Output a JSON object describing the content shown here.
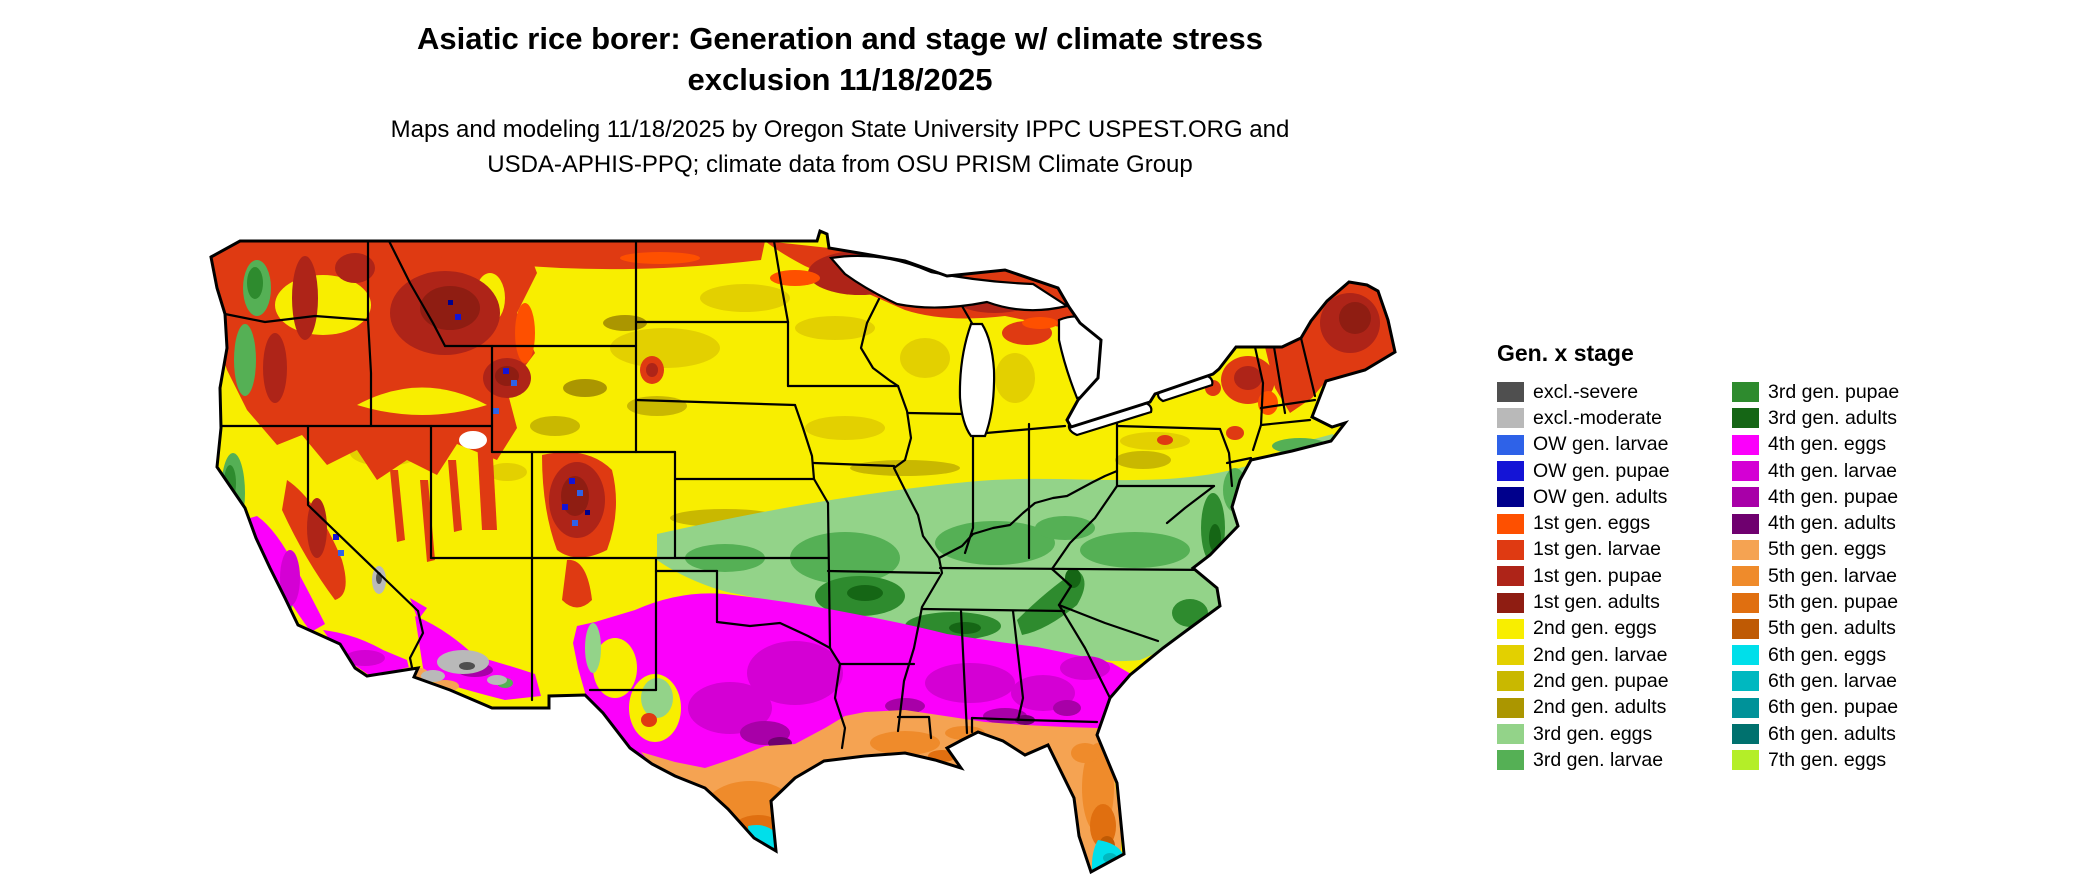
{
  "title": {
    "line1": "Asiatic rice borer: Generation and stage w/ climate stress",
    "line2": "exclusion 11/18/2025"
  },
  "subtitle": {
    "line1": "Maps and modeling 11/18/2025 by Oregon State University IPPC USPEST.ORG and",
    "line2": "USDA-APHIS-PPQ; climate data from OSU PRISM Climate Group"
  },
  "map": {
    "outline_color": "#000000",
    "water_color": "#ffffff",
    "background": "#ffffff"
  },
  "colors": {
    "excl_severe": "#4f4f4f",
    "excl_moderate": "#b9b9b9",
    "ow_larvae": "#2e62e8",
    "ow_pupae": "#1414d6",
    "ow_adults": "#00008c",
    "gen1_eggs": "#fe5000",
    "gen1_larvae": "#df3a12",
    "gen1_pupae": "#ae2418",
    "gen1_adults": "#8f1d12",
    "gen2_eggs": "#f8ee00",
    "gen2_larvae": "#e3d000",
    "gen2_pupae": "#c9b800",
    "gen2_adults": "#ab9600",
    "gen3_eggs": "#93d389",
    "gen3_larvae": "#55b055",
    "gen3_pupae": "#2e8b2e",
    "gen3_adults": "#156615",
    "gen4_eggs": "#fb00fb",
    "gen4_larvae": "#d400d4",
    "gen4_pupae": "#a800a8",
    "gen4_adults": "#6f006f",
    "gen5_eggs": "#f5a352",
    "gen5_larvae": "#ef8b2b",
    "gen5_pupae": "#e06f10",
    "gen5_adults": "#bf5a04",
    "gen6_eggs": "#00dfea",
    "gen6_larvae": "#00b8c0",
    "gen6_pupae": "#009299",
    "gen6_adults": "#00716e",
    "gen7_eggs": "#b4ee28"
  },
  "legend": {
    "title": "Gen. x stage",
    "columns": [
      [
        {
          "label": "excl.-severe",
          "color": "excl_severe"
        },
        {
          "label": "excl.-moderate",
          "color": "excl_moderate"
        },
        {
          "label": "OW gen. larvae",
          "color": "ow_larvae"
        },
        {
          "label": "OW gen. pupae",
          "color": "ow_pupae"
        },
        {
          "label": "OW gen. adults",
          "color": "ow_adults"
        },
        {
          "label": "1st gen. eggs",
          "color": "gen1_eggs"
        },
        {
          "label": "1st gen. larvae",
          "color": "gen1_larvae"
        },
        {
          "label": "1st gen. pupae",
          "color": "gen1_pupae"
        },
        {
          "label": "1st gen. adults",
          "color": "gen1_adults"
        },
        {
          "label": "2nd gen. eggs",
          "color": "gen2_eggs"
        },
        {
          "label": "2nd gen. larvae",
          "color": "gen2_larvae"
        },
        {
          "label": "2nd gen. pupae",
          "color": "gen2_pupae"
        },
        {
          "label": "2nd gen. adults",
          "color": "gen2_adults"
        },
        {
          "label": "3rd gen. eggs",
          "color": "gen3_eggs"
        },
        {
          "label": "3rd gen. larvae",
          "color": "gen3_larvae"
        }
      ],
      [
        {
          "label": "3rd gen. pupae",
          "color": "gen3_pupae"
        },
        {
          "label": "3rd gen. adults",
          "color": "gen3_adults"
        },
        {
          "label": "4th gen. eggs",
          "color": "gen4_eggs"
        },
        {
          "label": "4th gen. larvae",
          "color": "gen4_larvae"
        },
        {
          "label": "4th gen. pupae",
          "color": "gen4_pupae"
        },
        {
          "label": "4th gen. adults",
          "color": "gen4_adults"
        },
        {
          "label": "5th gen. eggs",
          "color": "gen5_eggs"
        },
        {
          "label": "5th gen. larvae",
          "color": "gen5_larvae"
        },
        {
          "label": "5th gen. pupae",
          "color": "gen5_pupae"
        },
        {
          "label": "5th gen. adults",
          "color": "gen5_adults"
        },
        {
          "label": "6th gen. eggs",
          "color": "gen6_eggs"
        },
        {
          "label": "6th gen. larvae",
          "color": "gen6_larvae"
        },
        {
          "label": "6th gen. pupae",
          "color": "gen6_pupae"
        },
        {
          "label": "6th gen. adults",
          "color": "gen6_adults"
        },
        {
          "label": "7th gen. eggs",
          "color": "gen7_eggs"
        }
      ]
    ]
  }
}
